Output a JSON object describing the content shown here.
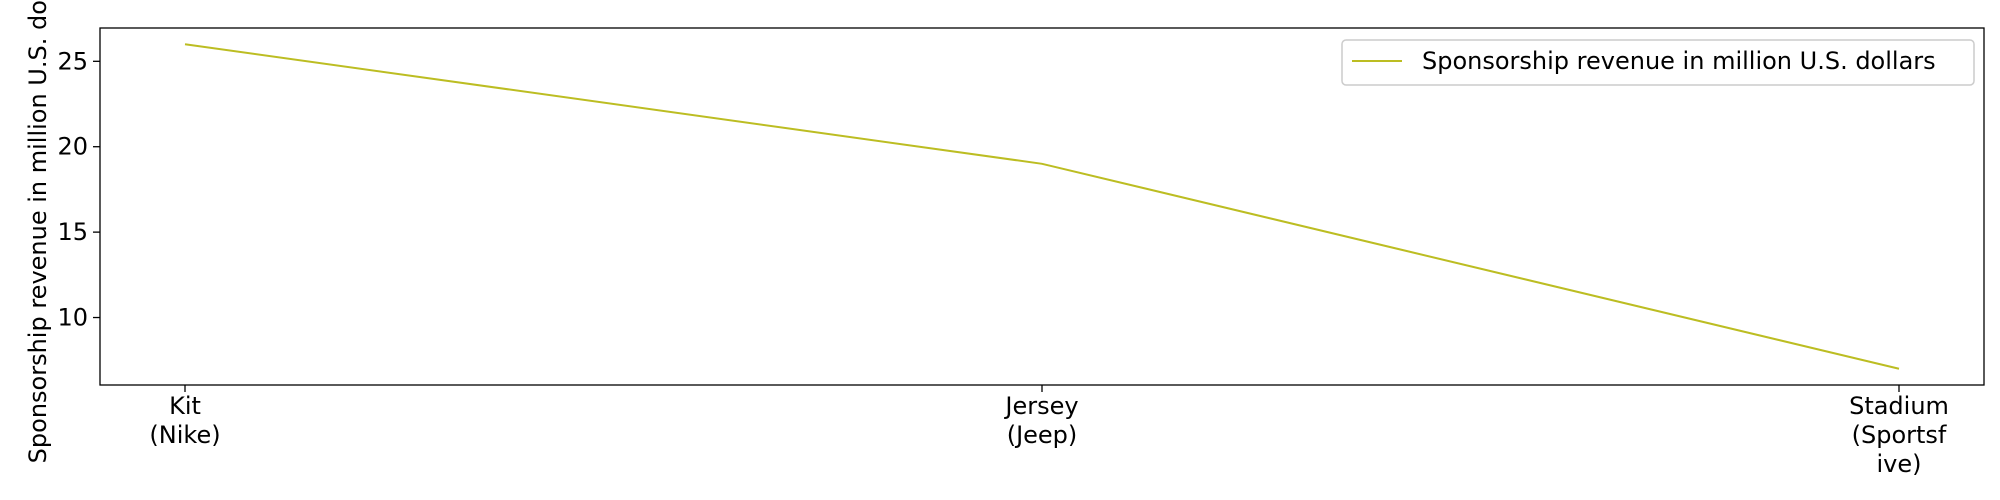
{
  "chart_data": {
    "type": "line",
    "title": "",
    "xlabel": "",
    "ylabel": "Sponsorship revenue in million U.S. dollars",
    "categories": [
      [
        "Kit",
        "(Nike)"
      ],
      [
        "Jersey",
        "(Jeep)"
      ],
      [
        "Stadium",
        "(Sportsf",
        "ive)"
      ]
    ],
    "series": [
      {
        "name": "Sponsorship revenue in million U.S. dollars",
        "values": [
          26,
          19,
          7
        ],
        "color": "#bcbd22"
      }
    ],
    "ylim": [
      6.05,
      26.95
    ],
    "yticks": [
      10,
      15,
      20,
      25
    ],
    "grid": false,
    "legend_position": "top-right"
  }
}
